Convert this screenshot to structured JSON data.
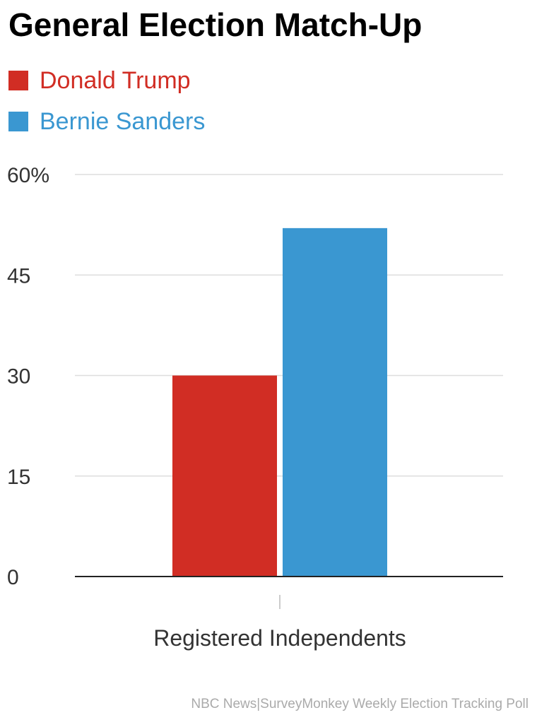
{
  "chart_data": {
    "type": "bar",
    "title": "General Election Match-Up",
    "categories": [
      "Registered Independents"
    ],
    "series": [
      {
        "name": "Donald Trump",
        "values": [
          30
        ],
        "color": "#d12d24"
      },
      {
        "name": "Bernie Sanders",
        "values": [
          52
        ],
        "color": "#3a97d1"
      }
    ],
    "y_ticks": [
      0,
      15,
      30,
      45,
      60
    ],
    "y_tick_labels": [
      "0",
      "15",
      "30",
      "45",
      "60%"
    ],
    "ylim": [
      0,
      60
    ],
    "grid": true,
    "legend_position": "top-left",
    "source": "NBC News|SurveyMonkey Weekly Election Tracking Poll"
  }
}
